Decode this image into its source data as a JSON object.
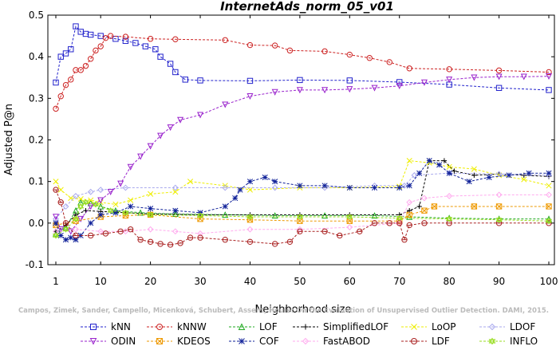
{
  "chart_data": {
    "type": "line",
    "title": "InternetAds_norm_05_v01",
    "xlabel": "Neighborhood size",
    "ylabel": "Adjusted P@n",
    "xlim": [
      1,
      100
    ],
    "ylim": [
      -0.1,
      0.5
    ],
    "xticks": [
      1,
      10,
      20,
      30,
      40,
      50,
      60,
      70,
      80,
      90,
      100
    ],
    "yticks": [
      -0.1,
      0.0,
      0.1,
      0.2,
      0.3,
      0.4,
      0.5
    ],
    "ytick_labels": [
      "-0.1",
      "0.0",
      "0.1",
      "0.2",
      "0.3",
      "0.4",
      "0.5"
    ],
    "grid": false,
    "legend_position": "bottom",
    "watermark": "Campos, Zimek, Sander, Campello, Micenková, Schubert, Assent, Houle: On the Evaluation of Unsupervised Outlier Detection. DAMI, 2015.",
    "series": [
      {
        "name": "kNN",
        "color": "#2222cc",
        "marker": "square",
        "points": [
          [
            1,
            0.338
          ],
          [
            2,
            0.4
          ],
          [
            3,
            0.408
          ],
          [
            4,
            0.418
          ],
          [
            5,
            0.473
          ],
          [
            6,
            0.46
          ],
          [
            7,
            0.455
          ],
          [
            8,
            0.453
          ],
          [
            10,
            0.45
          ],
          [
            13,
            0.443
          ],
          [
            15,
            0.438
          ],
          [
            17,
            0.433
          ],
          [
            19,
            0.425
          ],
          [
            21,
            0.418
          ],
          [
            22,
            0.4
          ],
          [
            24,
            0.383
          ],
          [
            25,
            0.363
          ],
          [
            27,
            0.345
          ],
          [
            30,
            0.343
          ],
          [
            40,
            0.342
          ],
          [
            50,
            0.344
          ],
          [
            60,
            0.343
          ],
          [
            70,
            0.339
          ],
          [
            80,
            0.333
          ],
          [
            90,
            0.325
          ],
          [
            100,
            0.32
          ]
        ]
      },
      {
        "name": "kNNW",
        "color": "#cc2222",
        "marker": "circle",
        "points": [
          [
            1,
            0.275
          ],
          [
            2,
            0.305
          ],
          [
            3,
            0.332
          ],
          [
            4,
            0.345
          ],
          [
            5,
            0.368
          ],
          [
            6,
            0.368
          ],
          [
            7,
            0.378
          ],
          [
            8,
            0.395
          ],
          [
            9,
            0.415
          ],
          [
            10,
            0.425
          ],
          [
            11,
            0.445
          ],
          [
            12,
            0.45
          ],
          [
            15,
            0.448
          ],
          [
            20,
            0.443
          ],
          [
            25,
            0.442
          ],
          [
            35,
            0.44
          ],
          [
            40,
            0.428
          ],
          [
            45,
            0.427
          ],
          [
            48,
            0.415
          ],
          [
            55,
            0.413
          ],
          [
            60,
            0.405
          ],
          [
            64,
            0.397
          ],
          [
            68,
            0.387
          ],
          [
            72,
            0.372
          ],
          [
            80,
            0.37
          ],
          [
            90,
            0.367
          ],
          [
            100,
            0.363
          ]
        ]
      },
      {
        "name": "LOF",
        "color": "#22aa22",
        "marker": "triangle-up",
        "points": [
          [
            1,
            -0.025
          ],
          [
            3,
            -0.01
          ],
          [
            5,
            0.03
          ],
          [
            6,
            0.05
          ],
          [
            8,
            0.048
          ],
          [
            10,
            0.04
          ],
          [
            13,
            0.03
          ],
          [
            18,
            0.025
          ],
          [
            25,
            0.022
          ],
          [
            35,
            0.02
          ],
          [
            45,
            0.018
          ],
          [
            55,
            0.018
          ],
          [
            65,
            0.018
          ],
          [
            72,
            0.015
          ],
          [
            80,
            0.012
          ],
          [
            90,
            0.01
          ],
          [
            100,
            0.01
          ]
        ]
      },
      {
        "name": "SimplifiedLOF",
        "color": "#000000",
        "marker": "plus",
        "points": [
          [
            1,
            -0.02
          ],
          [
            3,
            -0.005
          ],
          [
            5,
            0.02
          ],
          [
            7,
            0.03
          ],
          [
            10,
            0.028
          ],
          [
            15,
            0.025
          ],
          [
            20,
            0.022
          ],
          [
            30,
            0.02
          ],
          [
            40,
            0.02
          ],
          [
            50,
            0.02
          ],
          [
            60,
            0.02
          ],
          [
            70,
            0.02
          ],
          [
            72,
            0.03
          ],
          [
            74,
            0.04
          ],
          [
            76,
            0.15
          ],
          [
            79,
            0.15
          ],
          [
            81,
            0.125
          ],
          [
            85,
            0.115
          ],
          [
            90,
            0.118
          ],
          [
            95,
            0.115
          ],
          [
            100,
            0.112
          ]
        ]
      },
      {
        "name": "LoOP",
        "color": "#eeee00",
        "marker": "x",
        "points": [
          [
            1,
            0.1
          ],
          [
            2,
            0.08
          ],
          [
            4,
            0.06
          ],
          [
            6,
            0.058
          ],
          [
            8,
            0.055
          ],
          [
            10,
            0.05
          ],
          [
            13,
            0.045
          ],
          [
            16,
            0.055
          ],
          [
            20,
            0.07
          ],
          [
            25,
            0.075
          ],
          [
            28,
            0.1
          ],
          [
            35,
            0.09
          ],
          [
            40,
            0.08
          ],
          [
            50,
            0.085
          ],
          [
            60,
            0.085
          ],
          [
            70,
            0.088
          ],
          [
            72,
            0.15
          ],
          [
            76,
            0.145
          ],
          [
            80,
            0.135
          ],
          [
            85,
            0.13
          ],
          [
            90,
            0.115
          ],
          [
            95,
            0.105
          ],
          [
            100,
            0.09
          ]
        ]
      },
      {
        "name": "LDOF",
        "color": "#aaaaee",
        "marker": "diamond",
        "points": [
          [
            1,
            0.01
          ],
          [
            3,
            0.04
          ],
          [
            5,
            0.065
          ],
          [
            8,
            0.075
          ],
          [
            10,
            0.08
          ],
          [
            15,
            0.085
          ],
          [
            25,
            0.085
          ],
          [
            35,
            0.085
          ],
          [
            45,
            0.085
          ],
          [
            55,
            0.085
          ],
          [
            65,
            0.09
          ],
          [
            71,
            0.09
          ],
          [
            73,
            0.115
          ],
          [
            80,
            0.12
          ],
          [
            90,
            0.118
          ],
          [
            100,
            0.115
          ]
        ]
      },
      {
        "name": "ODIN",
        "color": "#9922cc",
        "marker": "triangle-down",
        "points": [
          [
            1,
            0.015
          ],
          [
            2,
            -0.015
          ],
          [
            4,
            -0.02
          ],
          [
            6,
            0.01
          ],
          [
            8,
            0.04
          ],
          [
            10,
            0.055
          ],
          [
            12,
            0.075
          ],
          [
            14,
            0.095
          ],
          [
            16,
            0.135
          ],
          [
            18,
            0.16
          ],
          [
            20,
            0.185
          ],
          [
            22,
            0.21
          ],
          [
            24,
            0.23
          ],
          [
            26,
            0.248
          ],
          [
            30,
            0.26
          ],
          [
            35,
            0.285
          ],
          [
            40,
            0.305
          ],
          [
            45,
            0.315
          ],
          [
            50,
            0.32
          ],
          [
            55,
            0.32
          ],
          [
            60,
            0.322
          ],
          [
            65,
            0.325
          ],
          [
            70,
            0.33
          ],
          [
            75,
            0.338
          ],
          [
            80,
            0.345
          ],
          [
            85,
            0.35
          ],
          [
            90,
            0.352
          ],
          [
            95,
            0.352
          ],
          [
            100,
            0.353
          ]
        ]
      },
      {
        "name": "KDEOS",
        "color": "#ee9900",
        "marker": "square-x",
        "points": [
          [
            1,
            -0.005
          ],
          [
            5,
            0.005
          ],
          [
            10,
            0.015
          ],
          [
            15,
            0.018
          ],
          [
            20,
            0.02
          ],
          [
            30,
            0.01
          ],
          [
            40,
            0.008
          ],
          [
            50,
            0.005
          ],
          [
            60,
            0.005
          ],
          [
            70,
            0.005
          ],
          [
            72,
            0.02
          ],
          [
            75,
            0.03
          ],
          [
            77,
            0.04
          ],
          [
            85,
            0.04
          ],
          [
            90,
            0.04
          ],
          [
            100,
            0.04
          ]
        ]
      },
      {
        "name": "COF",
        "color": "#112299",
        "marker": "star",
        "points": [
          [
            1,
            0.0
          ],
          [
            2,
            -0.03
          ],
          [
            3,
            -0.04
          ],
          [
            4,
            -0.035
          ],
          [
            5,
            -0.04
          ],
          [
            6,
            -0.03
          ],
          [
            8,
            0.0
          ],
          [
            10,
            0.02
          ],
          [
            13,
            0.025
          ],
          [
            16,
            0.04
          ],
          [
            20,
            0.035
          ],
          [
            25,
            0.03
          ],
          [
            30,
            0.025
          ],
          [
            35,
            0.04
          ],
          [
            37,
            0.06
          ],
          [
            38,
            0.08
          ],
          [
            40,
            0.1
          ],
          [
            43,
            0.11
          ],
          [
            45,
            0.1
          ],
          [
            50,
            0.09
          ],
          [
            55,
            0.09
          ],
          [
            60,
            0.085
          ],
          [
            65,
            0.085
          ],
          [
            70,
            0.085
          ],
          [
            72,
            0.09
          ],
          [
            74,
            0.12
          ],
          [
            76,
            0.15
          ],
          [
            78,
            0.14
          ],
          [
            80,
            0.12
          ],
          [
            84,
            0.1
          ],
          [
            88,
            0.11
          ],
          [
            92,
            0.115
          ],
          [
            96,
            0.12
          ],
          [
            100,
            0.12
          ]
        ]
      },
      {
        "name": "FastABOD",
        "color": "#ffaaee",
        "marker": "diamond",
        "points": [
          [
            1,
            -0.02
          ],
          [
            5,
            -0.015
          ],
          [
            10,
            -0.02
          ],
          [
            15,
            -0.02
          ],
          [
            20,
            -0.015
          ],
          [
            25,
            -0.02
          ],
          [
            30,
            -0.025
          ],
          [
            40,
            -0.015
          ],
          [
            50,
            -0.015
          ],
          [
            60,
            -0.01
          ],
          [
            70,
            0.0
          ],
          [
            72,
            0.05
          ],
          [
            75,
            0.06
          ],
          [
            80,
            0.065
          ],
          [
            90,
            0.068
          ],
          [
            100,
            0.068
          ]
        ]
      },
      {
        "name": "LDF",
        "color": "#aa2222",
        "marker": "circle-dot",
        "points": [
          [
            1,
            0.08
          ],
          [
            2,
            0.05
          ],
          [
            3,
            0.0
          ],
          [
            5,
            -0.03
          ],
          [
            8,
            -0.03
          ],
          [
            11,
            -0.025
          ],
          [
            14,
            -0.02
          ],
          [
            16,
            -0.015
          ],
          [
            18,
            -0.04
          ],
          [
            20,
            -0.045
          ],
          [
            22,
            -0.05
          ],
          [
            24,
            -0.052
          ],
          [
            26,
            -0.048
          ],
          [
            28,
            -0.035
          ],
          [
            30,
            -0.035
          ],
          [
            35,
            -0.04
          ],
          [
            40,
            -0.045
          ],
          [
            45,
            -0.05
          ],
          [
            48,
            -0.045
          ],
          [
            50,
            -0.02
          ],
          [
            55,
            -0.02
          ],
          [
            58,
            -0.03
          ],
          [
            62,
            -0.02
          ],
          [
            65,
            0.0
          ],
          [
            68,
            0.0
          ],
          [
            70,
            0.0
          ],
          [
            71,
            -0.04
          ],
          [
            72,
            -0.005
          ],
          [
            75,
            0.0
          ],
          [
            80,
            0.0
          ],
          [
            90,
            0.0
          ],
          [
            100,
            0.0
          ]
        ]
      },
      {
        "name": "INFLO",
        "color": "#99dd22",
        "marker": "hexagram",
        "points": [
          [
            1,
            -0.03
          ],
          [
            3,
            -0.015
          ],
          [
            5,
            0.01
          ],
          [
            6,
            0.04
          ],
          [
            7,
            0.05
          ],
          [
            9,
            0.045
          ],
          [
            12,
            0.03
          ],
          [
            15,
            0.025
          ],
          [
            20,
            0.02
          ],
          [
            30,
            0.018
          ],
          [
            40,
            0.015
          ],
          [
            50,
            0.015
          ],
          [
            60,
            0.015
          ],
          [
            70,
            0.012
          ],
          [
            80,
            0.01
          ],
          [
            90,
            0.008
          ],
          [
            100,
            0.005
          ]
        ]
      }
    ]
  }
}
